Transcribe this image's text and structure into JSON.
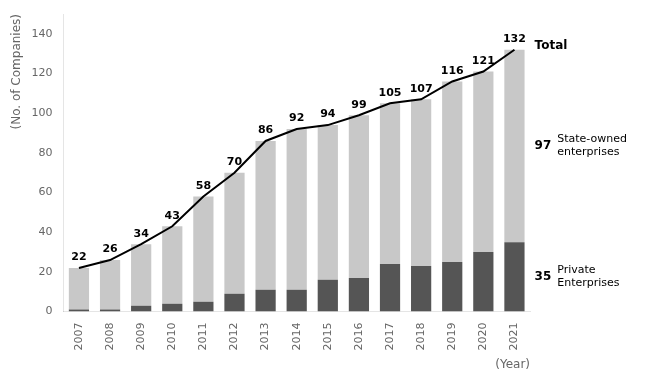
{
  "chart_data": {
    "type": "bar",
    "categories": [
      "2007",
      "2008",
      "2009",
      "2010",
      "2011",
      "2012",
      "2013",
      "2014",
      "2015",
      "2016",
      "2017",
      "2018",
      "2019",
      "2020",
      "2021"
    ],
    "series": [
      {
        "name": "Private\nEnterprises",
        "type": "bar",
        "color": "#555555",
        "values": [
          1,
          1,
          3,
          4,
          5,
          9,
          11,
          11,
          16,
          17,
          24,
          23,
          25,
          30,
          35
        ]
      },
      {
        "name": "State-owned\nenterprises",
        "type": "bar",
        "color": "#c8c8c8",
        "values": [
          21,
          25,
          31,
          39,
          53,
          61,
          75,
          81,
          78,
          82,
          81,
          84,
          91,
          91,
          97
        ]
      },
      {
        "name": "Total",
        "type": "line",
        "color": "#000000",
        "data_labels": true,
        "values": [
          22,
          26,
          34,
          43,
          58,
          70,
          86,
          92,
          94,
          99,
          105,
          107,
          116,
          121,
          132
        ]
      }
    ],
    "annotations": [
      {
        "series": "State-owned\nenterprises",
        "text": "97"
      },
      {
        "series": "Private\nEnterprises",
        "text": "35"
      }
    ],
    "stacked": true,
    "grid": false,
    "ylabel": "(No. of Companies)",
    "xlabel": "(Year)",
    "ylim": [
      0,
      150
    ],
    "yticks": [
      0,
      20,
      40,
      60,
      80,
      100,
      120,
      140
    ]
  }
}
